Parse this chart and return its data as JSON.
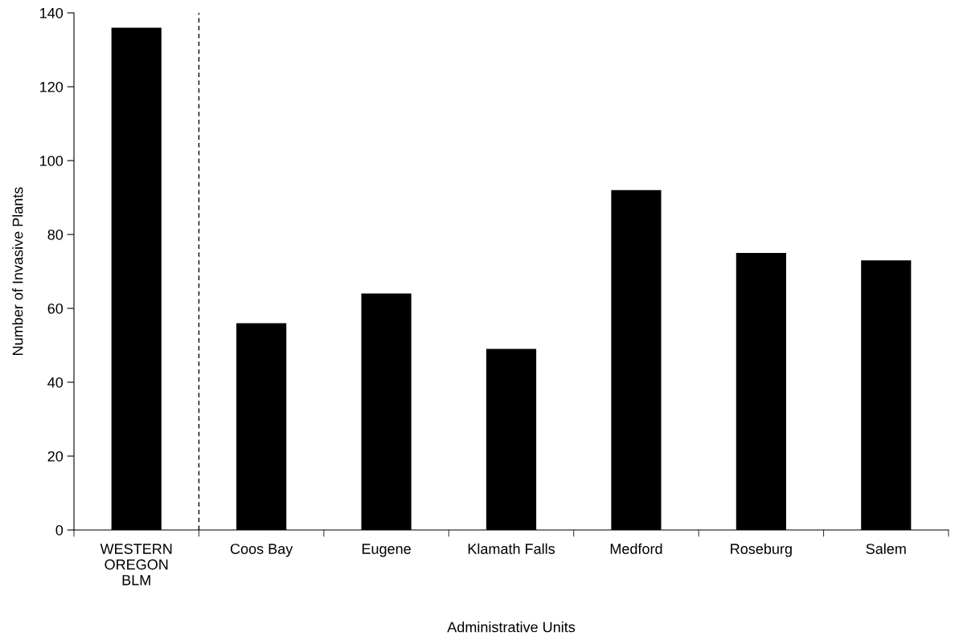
{
  "chart_data": {
    "type": "bar",
    "xlabel": "Administrative Units",
    "ylabel": "Number of Invasive Plants",
    "categories": [
      "WESTERN\nOREGON\nBLM",
      "Coos Bay",
      "Eugene",
      "Klamath Falls",
      "Medford",
      "Roseburg",
      "Salem"
    ],
    "values": [
      136,
      56,
      64,
      49,
      92,
      75,
      73
    ],
    "color": "#000000",
    "ylim": [
      0,
      140
    ],
    "yticks": [
      0,
      20,
      40,
      60,
      80,
      100,
      120,
      140
    ],
    "grid": false,
    "legend": false
  }
}
